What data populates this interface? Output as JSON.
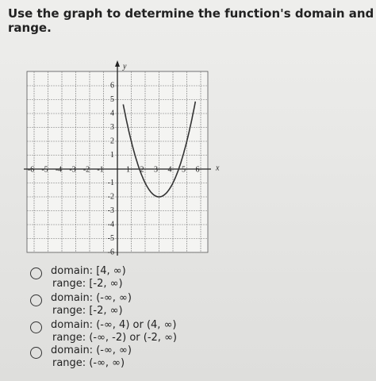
{
  "question": "Use the graph to determine the function's domain and range.",
  "graph": {
    "x_label": "x",
    "y_label": "y",
    "x_ticks": [
      -6,
      -5,
      -4,
      -3,
      -2,
      -1,
      1,
      2,
      3,
      4,
      5,
      6
    ],
    "y_ticks": [
      6,
      5,
      4,
      3,
      2,
      1,
      -1,
      -2,
      -3,
      -4,
      -5,
      -6
    ]
  },
  "options": [
    {
      "domain": "domain: [4, ∞)",
      "range": "range: [-2, ∞)"
    },
    {
      "domain": "domain: (-∞, ∞)",
      "range": "range: [-2, ∞)"
    },
    {
      "domain": "domain: (-∞, 4) or (4, ∞)",
      "range": "range: (-∞, -2) or (-2, ∞)"
    },
    {
      "domain": "domain: (-∞, ∞)",
      "range": "range: (-∞, ∞)"
    }
  ]
}
